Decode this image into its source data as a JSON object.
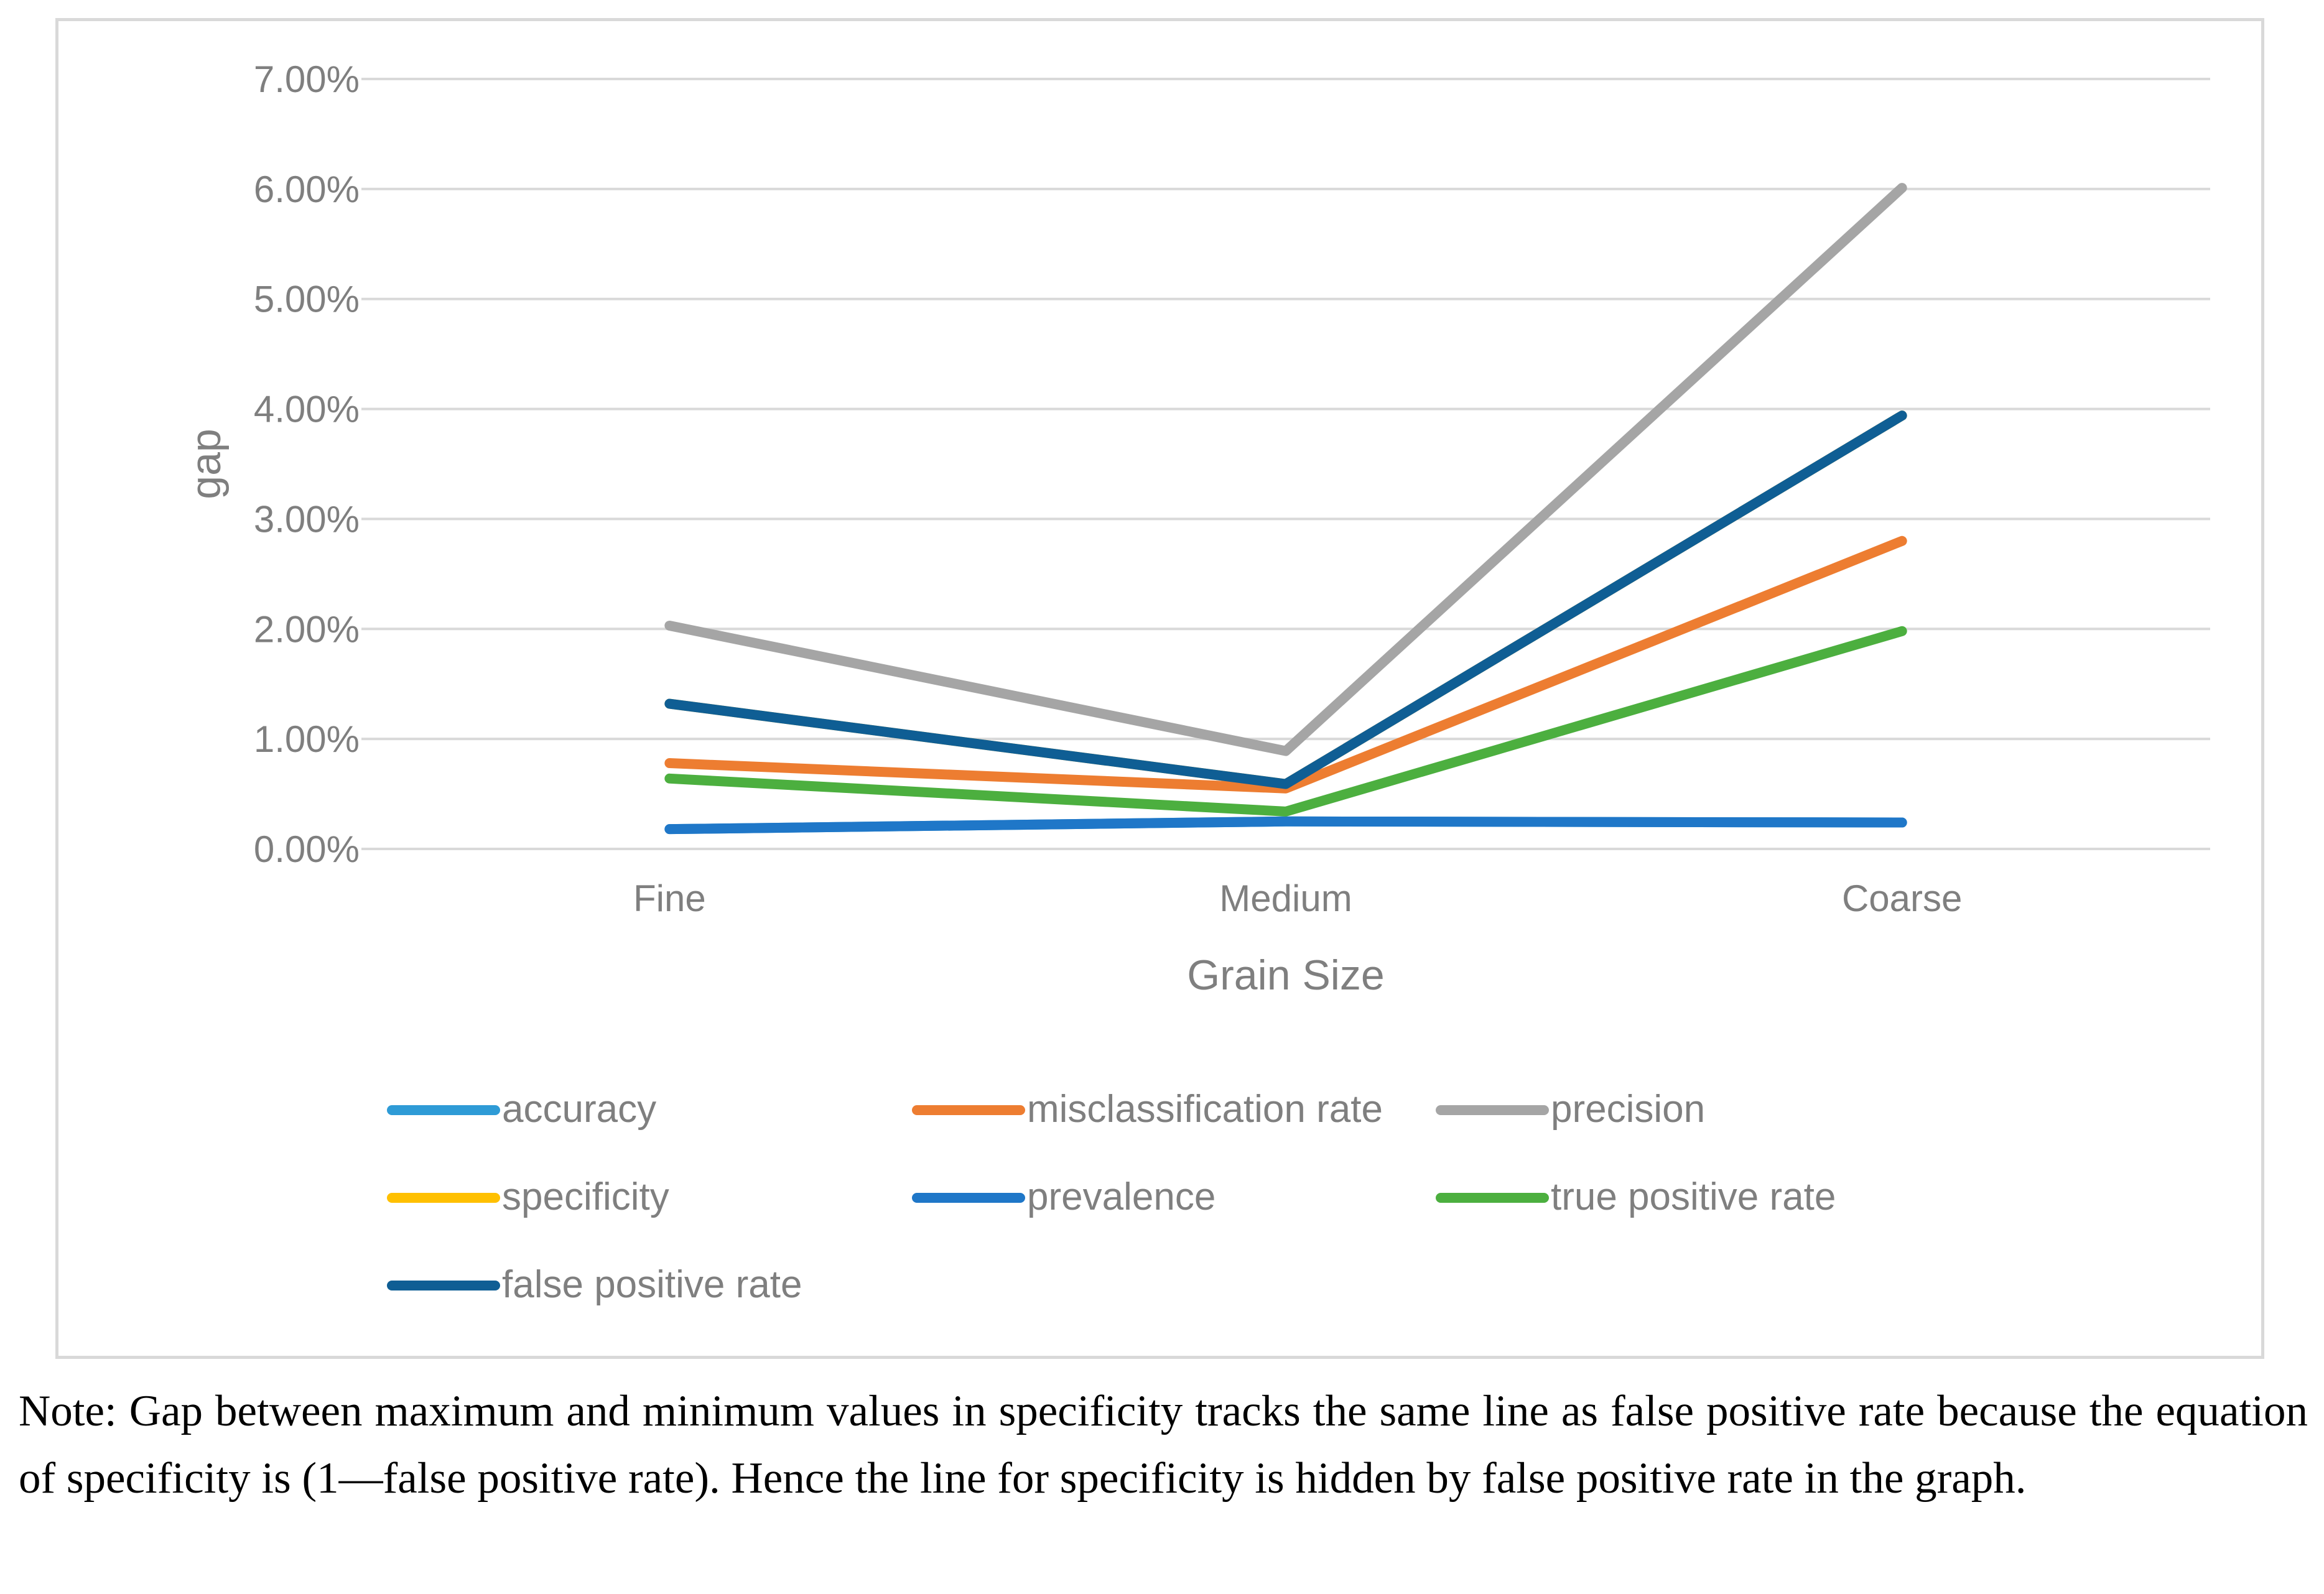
{
  "chart_data": {
    "type": "line",
    "categories": [
      "Fine",
      "Medium",
      "Coarse"
    ],
    "xlabel": "Grain Size",
    "ylabel": "gap",
    "ylim": [
      0,
      0.07
    ],
    "yticks": [
      "0.00%",
      "1.00%",
      "2.00%",
      "3.00%",
      "4.00%",
      "5.00%",
      "6.00%",
      "7.00%"
    ],
    "grid": true,
    "legend": "bottom",
    "series": [
      {
        "name": "accuracy",
        "color": "#2E9BD6",
        "values": [
          0.0018,
          0.0025,
          0.0024
        ]
      },
      {
        "name": "misclassification rate",
        "color": "#ED7D31",
        "values": [
          0.0078,
          0.0055,
          0.028
        ]
      },
      {
        "name": "precision",
        "color": "#A5A5A5",
        "values": [
          0.0203,
          0.0089,
          0.0601
        ]
      },
      {
        "name": "specificity",
        "color": "#FFC000",
        "values": [
          0.0132,
          0.0059,
          0.0394
        ]
      },
      {
        "name": "prevalence",
        "color": "#1F77C8",
        "values": [
          0.0018,
          0.0025,
          0.0024
        ]
      },
      {
        "name": "true positive rate",
        "color": "#4CAF3F",
        "values": [
          0.0064,
          0.0034,
          0.0198
        ]
      },
      {
        "name": "false positive rate",
        "color": "#0F5E94",
        "values": [
          0.0132,
          0.0059,
          0.0394
        ]
      }
    ],
    "draw_order": [
      "accuracy",
      "specificity",
      "prevalence",
      "true positive rate",
      "misclassification rate",
      "precision",
      "false positive rate"
    ]
  },
  "note": "Note: Gap between maximum and minimum values in specificity tracks the same line as false positive rate because the equation of specificity is (1—false positive rate). Hence the line for specificity is hidden by false positive rate in the graph."
}
